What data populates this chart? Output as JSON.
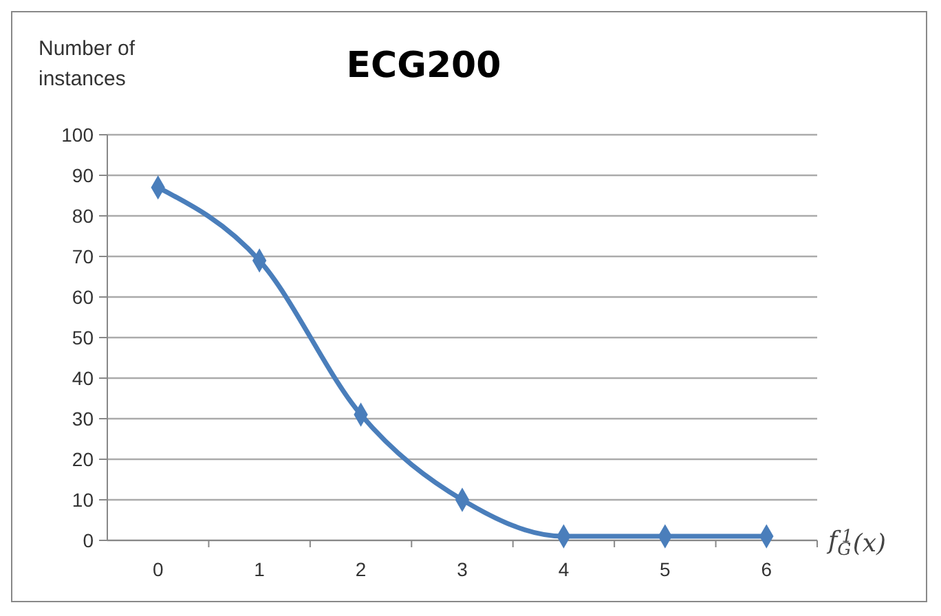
{
  "chart_data": {
    "type": "line",
    "title": "ECG200",
    "ylabel": "Number of instances",
    "xlabel": "f$_{G}$$^{1}$(x)",
    "categories": [
      "0",
      "1",
      "2",
      "3",
      "4",
      "5",
      "6"
    ],
    "series": [
      {
        "color": "#4a7ebb",
        "values": [
          87,
          69,
          31,
          10,
          1,
          1,
          1
        ]
      }
    ],
    "ylim": [
      0,
      100
    ],
    "yticks": [
      0,
      10,
      20,
      30,
      40,
      50,
      60,
      70,
      80,
      90,
      100
    ],
    "grid": "y",
    "marker": "diamond",
    "line_style": "solid"
  }
}
